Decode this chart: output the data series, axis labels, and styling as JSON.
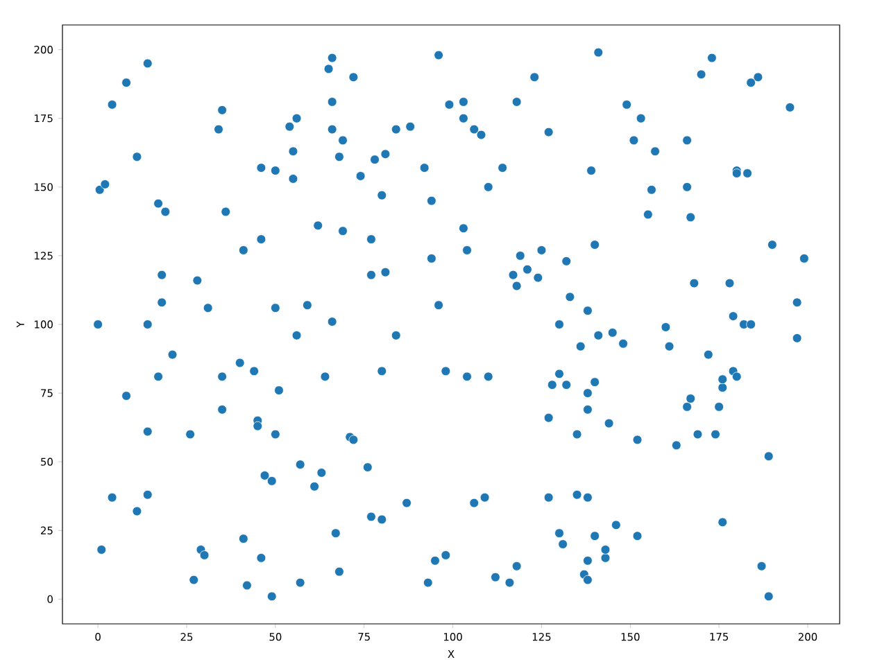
{
  "chart_data": {
    "type": "scatter",
    "xlabel": "X",
    "ylabel": "Y",
    "xlim": [
      -10,
      209
    ],
    "ylim": [
      -9,
      209
    ],
    "xticks": [
      0,
      25,
      50,
      75,
      100,
      125,
      150,
      175,
      200
    ],
    "yticks": [
      0,
      25,
      50,
      75,
      100,
      125,
      150,
      175,
      200
    ],
    "series": [
      {
        "color": "#1f77b4",
        "x": [
          4,
          8,
          14,
          0.5,
          2,
          11,
          17,
          19,
          34,
          35,
          36,
          46,
          50,
          54,
          56,
          55,
          55,
          65,
          66,
          66,
          66,
          69,
          68,
          72,
          74,
          78,
          81,
          84,
          88,
          96,
          92,
          99,
          103,
          103,
          106,
          108,
          110,
          114,
          118,
          123,
          127,
          139,
          141,
          149,
          151,
          153,
          157,
          156,
          166,
          166,
          167,
          170,
          173,
          180,
          180,
          183,
          184,
          186,
          195,
          155,
          18,
          18,
          14,
          28,
          31,
          41,
          46,
          50,
          59,
          62,
          66,
          69,
          77,
          77,
          80,
          81,
          94,
          94,
          96,
          103,
          104,
          117,
          118,
          119,
          121,
          124,
          125,
          130,
          132,
          133,
          136,
          138,
          140,
          141,
          145,
          148,
          160,
          161,
          168,
          172,
          178,
          179,
          182,
          184,
          190,
          197,
          197,
          199,
          0,
          8,
          17,
          21,
          35,
          35,
          40,
          44,
          45,
          45,
          50,
          51,
          56,
          64,
          71,
          72,
          80,
          84,
          98,
          104,
          110,
          127,
          128,
          130,
          132,
          138,
          140,
          138,
          144,
          152,
          163,
          166,
          167,
          169,
          174,
          175,
          176,
          176,
          179,
          180,
          189,
          135,
          26,
          1,
          4,
          11,
          14,
          14,
          27,
          29,
          30,
          41,
          42,
          46,
          47,
          49,
          49,
          57,
          57,
          61,
          63,
          67,
          68,
          76,
          77,
          80,
          87,
          93,
          95,
          98,
          106,
          109,
          112,
          116,
          118,
          127,
          130,
          131,
          135,
          137,
          138,
          138,
          138,
          140,
          143,
          143,
          146,
          152,
          176,
          187,
          189
        ],
        "values": [
          180,
          188,
          195,
          149,
          151,
          161,
          144,
          141,
          171,
          178,
          141,
          157,
          156,
          172,
          175,
          163,
          153,
          193,
          197,
          181,
          171,
          167,
          161,
          190,
          154,
          160,
          162,
          171,
          172,
          198,
          157,
          180,
          181,
          175,
          171,
          169,
          150,
          157,
          181,
          190,
          170,
          156,
          199,
          180,
          167,
          175,
          163,
          149,
          167,
          150,
          139,
          191,
          197,
          156,
          155,
          155,
          188,
          190,
          179,
          140,
          118,
          108,
          100,
          116,
          106,
          127,
          131,
          106,
          107,
          136,
          101,
          134,
          131,
          118,
          147,
          119,
          145,
          124,
          107,
          135,
          127,
          118,
          114,
          125,
          120,
          117,
          127,
          100,
          123,
          110,
          92,
          105,
          129,
          96,
          97,
          93,
          99,
          92,
          115,
          89,
          115,
          103,
          100,
          100,
          129,
          108,
          95,
          124,
          100,
          74,
          81,
          89,
          81,
          69,
          86,
          83,
          65,
          63,
          60,
          76,
          96,
          81,
          59,
          58,
          83,
          96,
          83,
          81,
          81,
          66,
          78,
          82,
          78,
          75,
          79,
          69,
          64,
          58,
          56,
          70,
          73,
          60,
          60,
          70,
          77,
          80,
          83,
          81,
          52,
          60,
          60,
          18,
          37,
          32,
          38,
          61,
          7,
          18,
          16,
          22,
          5,
          15,
          45,
          43,
          1,
          49,
          6,
          41,
          46,
          24,
          10,
          48,
          30,
          29,
          35,
          6,
          14,
          16,
          35,
          37,
          8,
          6,
          12,
          37,
          24,
          20,
          38,
          9,
          7,
          37,
          14,
          23,
          15,
          18,
          27,
          23,
          28,
          12,
          1
        ]
      }
    ]
  }
}
